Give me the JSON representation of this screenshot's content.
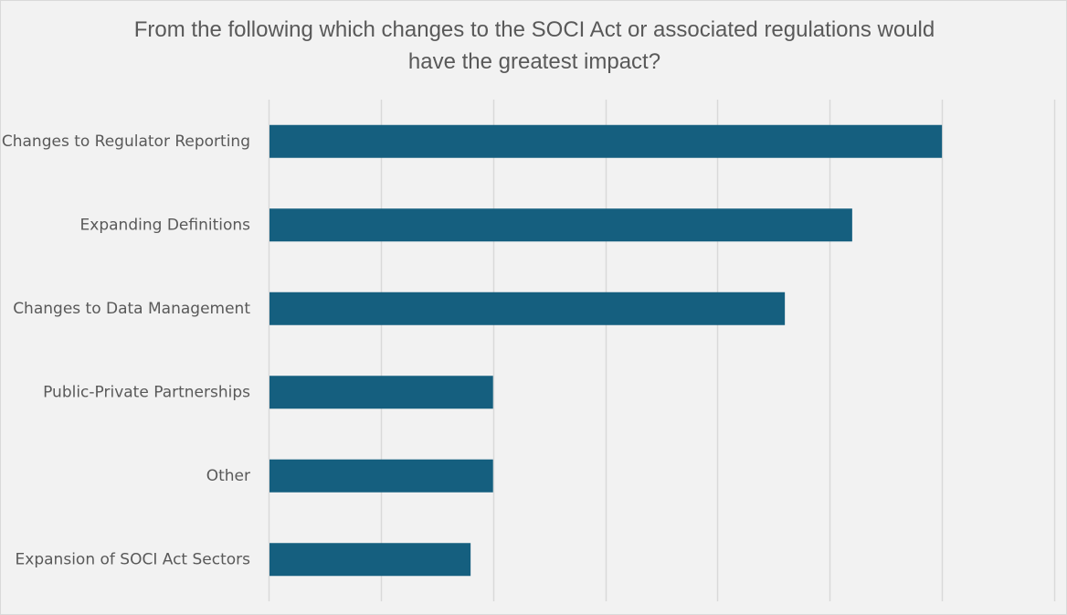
{
  "chart_data": {
    "type": "bar",
    "orientation": "horizontal",
    "title_lines": [
      "From the following which changes to the SOCI Act or associated regulations would",
      "have the greatest impact?"
    ],
    "categories": [
      "Changes to Regulator Reporting",
      "Expanding Definitions",
      "Changes to Data Management",
      "Public-Private Partnerships",
      "Other",
      "Expansion of SOCI Act Sectors"
    ],
    "values": [
      6,
      5.2,
      4.6,
      2,
      2,
      1.8
    ],
    "xlim": [
      0,
      7
    ],
    "grid": true,
    "legend": "none",
    "bar_color": "#155f7f",
    "grid_color": "#d9d9d9"
  }
}
